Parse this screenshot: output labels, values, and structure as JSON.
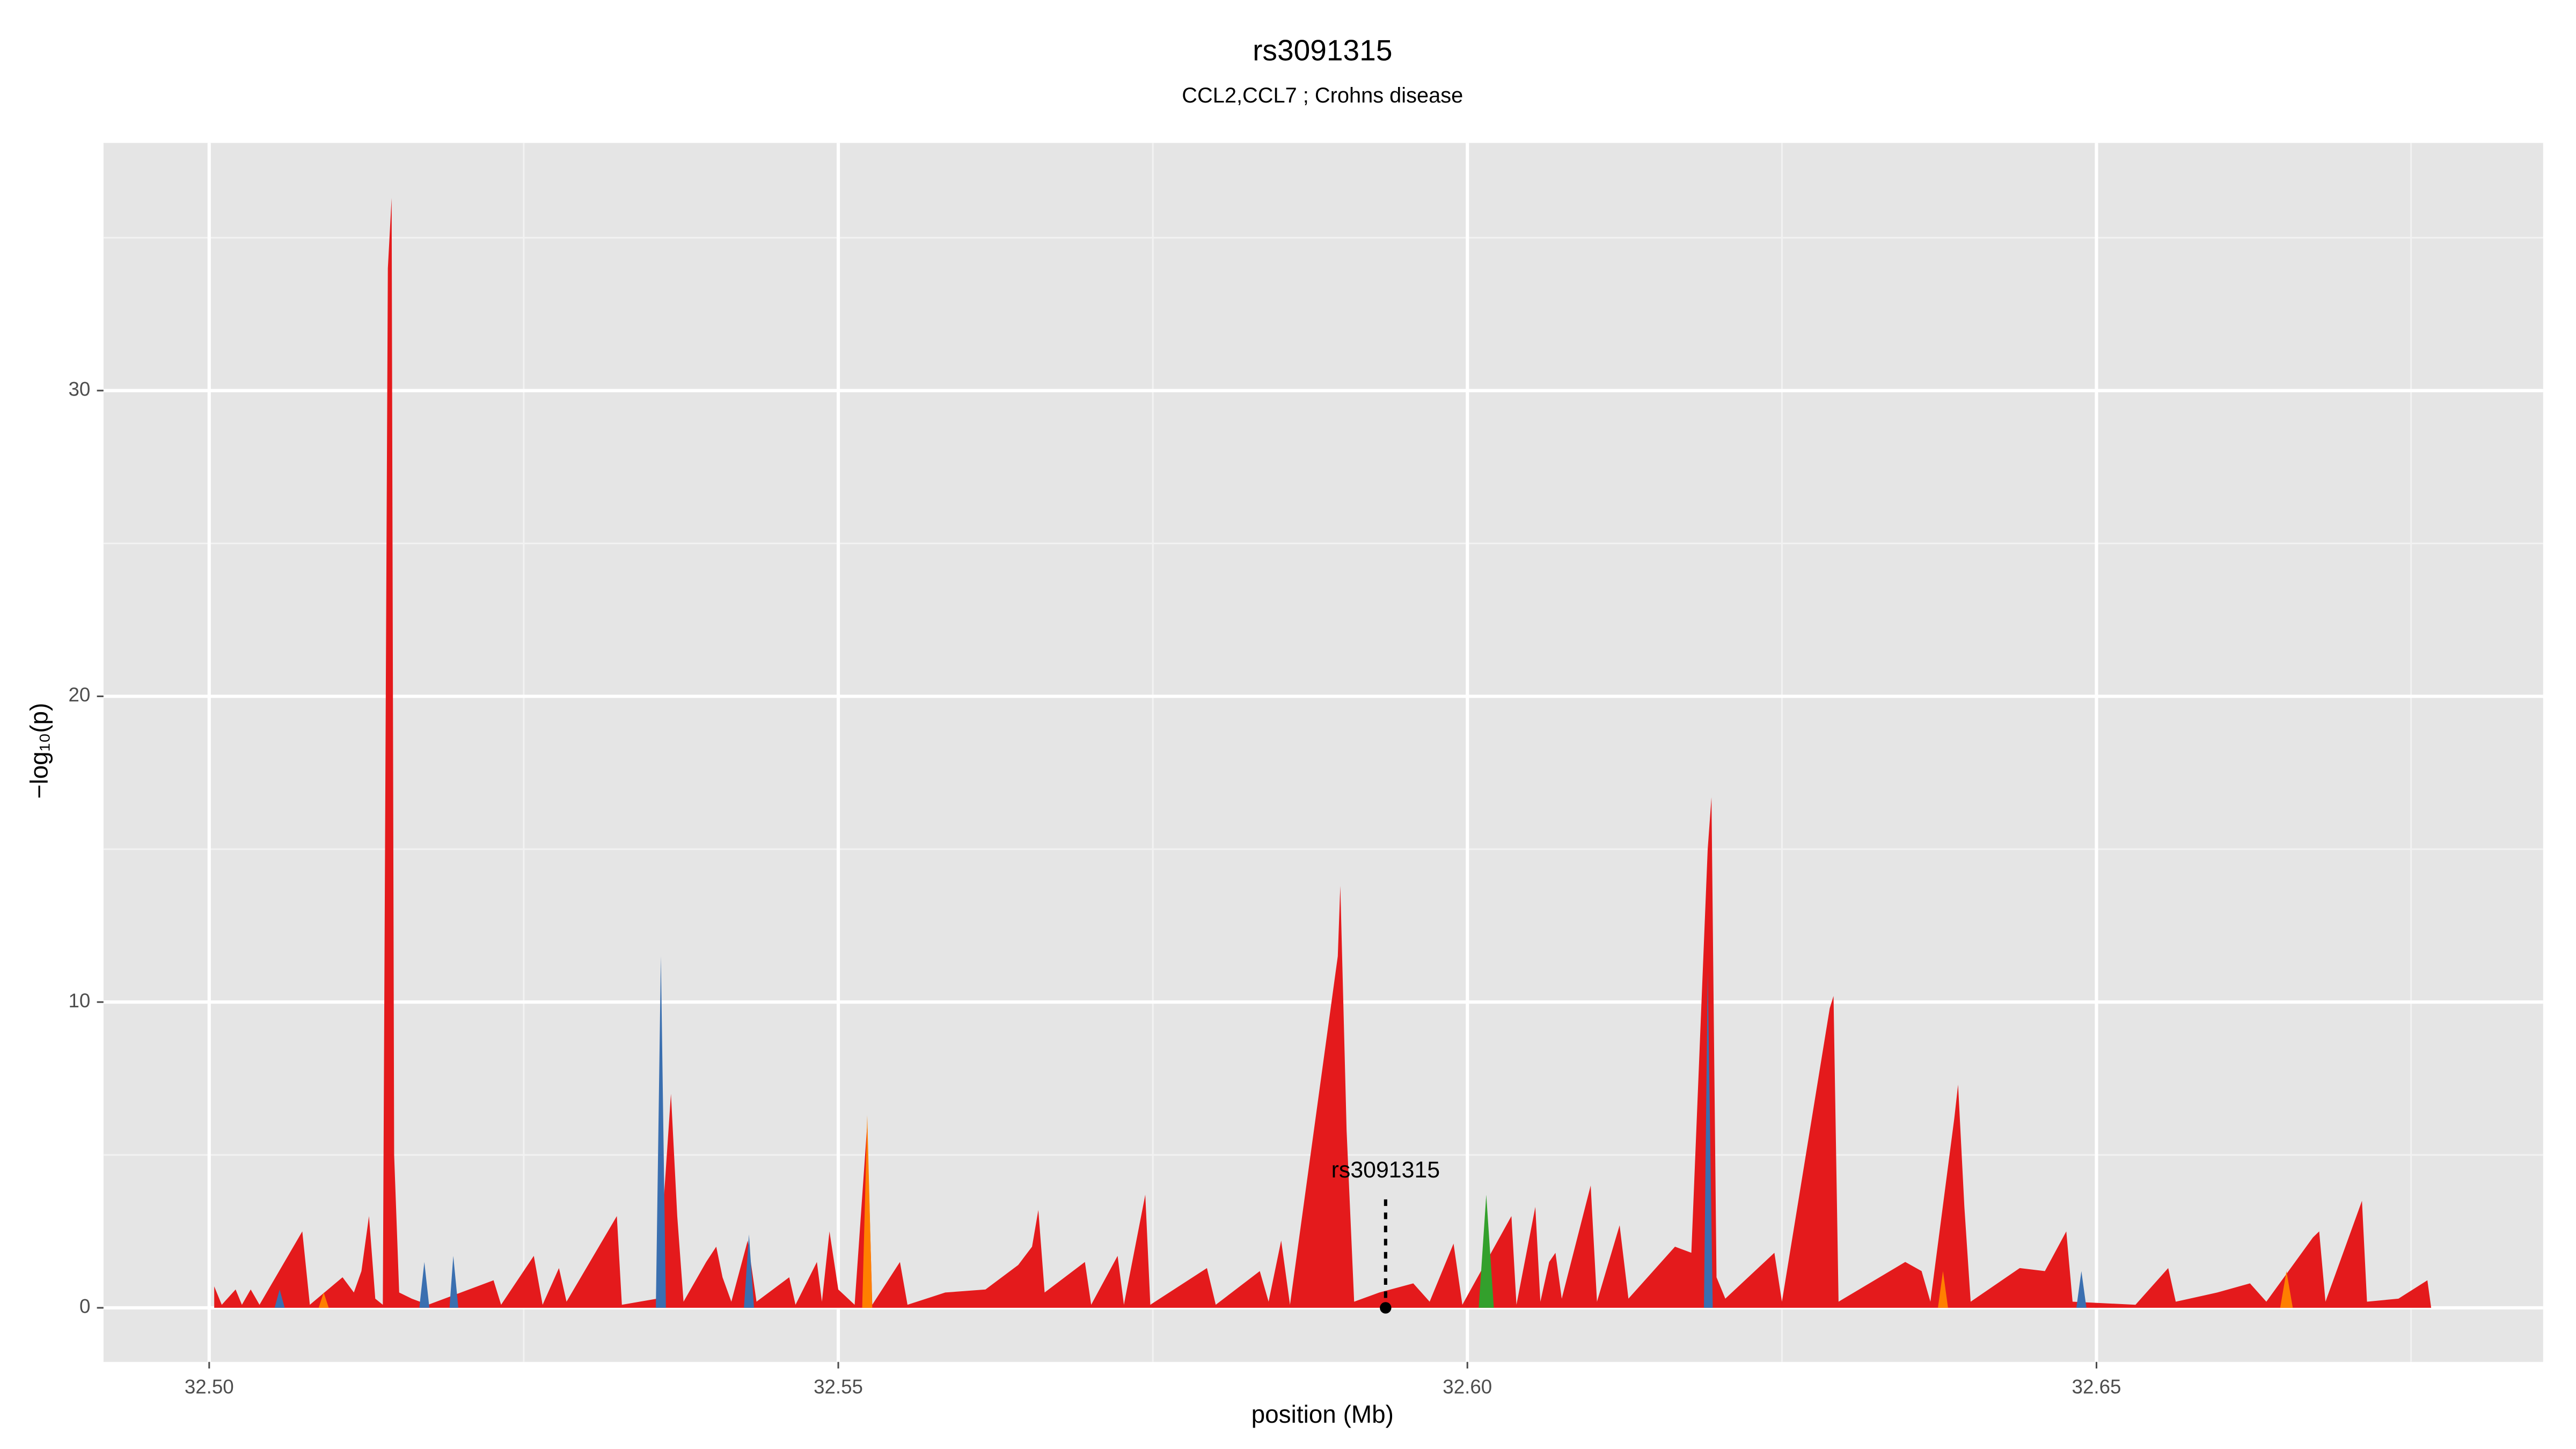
{
  "chart_data": {
    "type": "area",
    "title": "rs3091315",
    "subtitle": "CCL2,CCL7 ; Crohns disease",
    "x_label": "position (Mb)",
    "y_label": "−log₁₀(p)",
    "xlim": [
      32.4916,
      32.6855
    ],
    "ylim": [
      -1.77,
      38.1
    ],
    "xticks": [
      {
        "value": 32.5,
        "label": "32.50"
      },
      {
        "value": 32.55,
        "label": "32.55"
      },
      {
        "value": 32.6,
        "label": "32.60"
      },
      {
        "value": 32.65,
        "label": "32.65"
      }
    ],
    "yticks": [
      0,
      10,
      20,
      30
    ],
    "x_minor_ticks": [
      32.525,
      32.575,
      32.625,
      32.675
    ],
    "y_minor_ticks": [
      5,
      15,
      25,
      35
    ],
    "grid": true,
    "series": [
      {
        "color": "#e41a1c",
        "x": [
          32.5004,
          32.501,
          32.5021,
          32.5026,
          32.5033,
          32.504,
          32.5074,
          32.508,
          32.5106,
          32.5115,
          32.5121,
          32.5127,
          32.5132,
          32.5138,
          32.5142,
          32.5145,
          32.5147,
          32.5151,
          32.5161,
          32.5174,
          32.5226,
          32.5232,
          32.5258,
          32.5265,
          32.5278,
          32.5284,
          32.5324,
          32.5328,
          32.5356,
          32.5367,
          32.5372,
          32.5377,
          32.5395,
          32.5403,
          32.5408,
          32.5415,
          32.5428,
          32.5435,
          32.5461,
          32.5466,
          32.5483,
          32.5487,
          32.5493,
          32.55,
          32.5513,
          32.5523,
          32.5527,
          32.5549,
          32.5555,
          32.5585,
          32.5617,
          32.5643,
          32.5654,
          32.5659,
          32.5664,
          32.5696,
          32.5701,
          32.5722,
          32.5727,
          32.5744,
          32.5748,
          32.5793,
          32.58,
          32.5835,
          32.5842,
          32.5852,
          32.5859,
          32.5897,
          32.5899,
          32.5904,
          32.591,
          32.593,
          32.5957,
          32.597,
          32.5989,
          32.5996,
          32.6035,
          32.6039,
          32.6054,
          32.6058,
          32.6065,
          32.607,
          32.6075,
          32.6098,
          32.6103,
          32.6121,
          32.6128,
          32.6165,
          32.6178,
          32.6191,
          32.6194,
          32.6198,
          32.6205,
          32.6244,
          32.625,
          32.6288,
          32.6291,
          32.6295,
          32.6348,
          32.6361,
          32.6368,
          32.6387,
          32.639,
          32.6395,
          32.64,
          32.6439,
          32.6459,
          32.6476,
          32.6481,
          32.6531,
          32.6557,
          32.6563,
          32.6596,
          32.6622,
          32.6635,
          32.6672,
          32.6677,
          32.6682,
          32.6711,
          32.6715,
          32.674,
          32.6763,
          32.6766
        ],
        "values": [
          0.7,
          0.1,
          0.6,
          0.1,
          0.6,
          0.1,
          2.5,
          0.1,
          1.0,
          0.5,
          1.2,
          3.0,
          0.3,
          0.1,
          34,
          36.3,
          5,
          0.5,
          0.3,
          0.1,
          0.9,
          0.1,
          1.7,
          0.1,
          1.3,
          0.2,
          3.0,
          0.1,
          0.3,
          7.0,
          3,
          0.2,
          1.5,
          2.0,
          1.0,
          0.2,
          2.2,
          0.2,
          1.0,
          0.1,
          1.5,
          0.2,
          2.5,
          0.6,
          0.1,
          6.0,
          0.1,
          1.5,
          0.1,
          0.5,
          0.6,
          1.4,
          2.0,
          3.2,
          0.5,
          1.5,
          0.1,
          1.7,
          0.1,
          3.7,
          0.1,
          1.3,
          0.1,
          1.2,
          0.2,
          2.2,
          0.1,
          11.5,
          13.8,
          5.8,
          0.2,
          0.5,
          0.8,
          0.2,
          2.1,
          0.1,
          3.0,
          0.1,
          3.3,
          0.2,
          1.5,
          1.8,
          0.3,
          4.0,
          0.2,
          2.7,
          0.3,
          2.0,
          1.8,
          15,
          16.7,
          1.0,
          0.3,
          1.8,
          0.2,
          9.8,
          10.2,
          0.2,
          1.5,
          1.2,
          0.2,
          6.2,
          7.3,
          3.3,
          0.2,
          1.3,
          1.2,
          2.5,
          0.2,
          0.1,
          1.3,
          0.2,
          0.5,
          0.8,
          0.2,
          2.3,
          2.5,
          0.2,
          3.5,
          0.2,
          0.3,
          0.9,
          0
        ]
      },
      {
        "color": "#ff7f00",
        "x": [
          32.5087,
          32.5091,
          32.5095,
          32.5519,
          32.5523,
          32.5527,
          32.6374,
          32.6378,
          32.6382,
          32.6646,
          32.6651,
          32.6656
        ],
        "values": [
          0,
          0.5,
          0,
          0,
          6.3,
          0,
          0,
          1.2,
          0,
          0,
          1.2,
          0
        ]
      },
      {
        "color": "#33a02c",
        "x": [
          32.6009,
          32.6015,
          32.6021
        ],
        "values": [
          0,
          3.7,
          0
        ]
      },
      {
        "color": "#3a6fb0",
        "x": [
          32.5052,
          32.5056,
          32.506,
          32.5167,
          32.5171,
          32.5175,
          32.5191,
          32.5194,
          32.5198,
          32.5355,
          32.5359,
          32.5363,
          32.5425,
          32.5429,
          32.5433,
          32.6188,
          32.6191,
          32.6195,
          32.6484,
          32.6488,
          32.6492
        ],
        "values": [
          0,
          0.6,
          0,
          0,
          1.5,
          0,
          0,
          1.7,
          0,
          0,
          11.5,
          0,
          0,
          2.4,
          0,
          0,
          11,
          0,
          0,
          1.2,
          0
        ]
      }
    ],
    "annotation": {
      "label": "rs3091315",
      "x": 32.5935,
      "y": 0
    }
  }
}
